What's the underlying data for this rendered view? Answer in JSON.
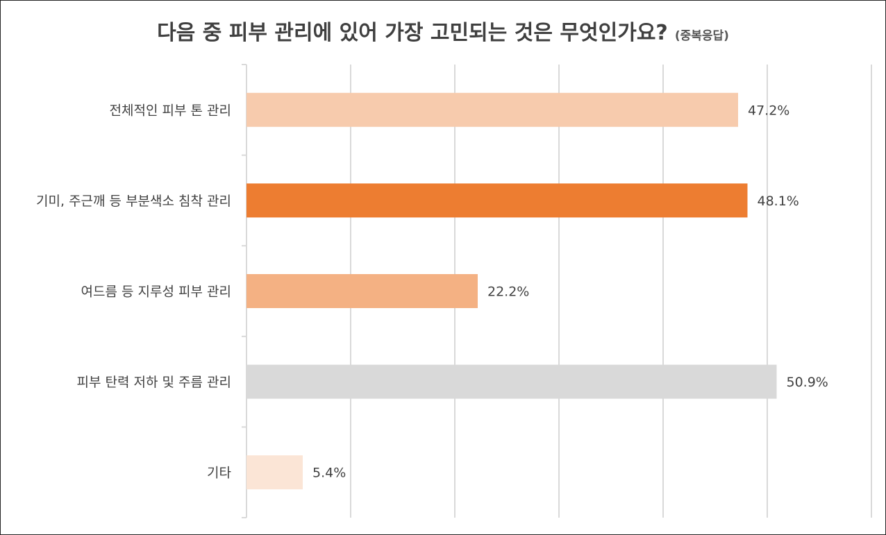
{
  "title": "다음 중 피부 관리에 있어 가장 고민되는 것은 무엇인가요?",
  "subtitle": "(중복응답)",
  "chart_data": {
    "type": "bar",
    "orientation": "horizontal",
    "title": "다음 중 피부 관리에 있어 가장 고민되는 것은 무엇인가요?",
    "subtitle": "(중복응답)",
    "categories": [
      "전체적인 피부 톤 관리",
      "기미, 주근깨 등 부분색소 침착 관리",
      "여드름 등 지루성 피부 관리",
      "피부 탄력 저하 및 주름 관리",
      "기타"
    ],
    "values": [
      47.2,
      48.1,
      22.2,
      50.9,
      5.4
    ],
    "value_labels": [
      "47.2%",
      "48.1%",
      "22.2%",
      "50.9%",
      "5.4%"
    ],
    "unit": "%",
    "xlim": [
      0,
      60
    ],
    "grid": true,
    "grid_step": 10,
    "legend": "none",
    "colors": [
      "#f7cbad",
      "#ed7d31",
      "#f4b183",
      "#d9d9d9",
      "#fbe5d6"
    ]
  }
}
